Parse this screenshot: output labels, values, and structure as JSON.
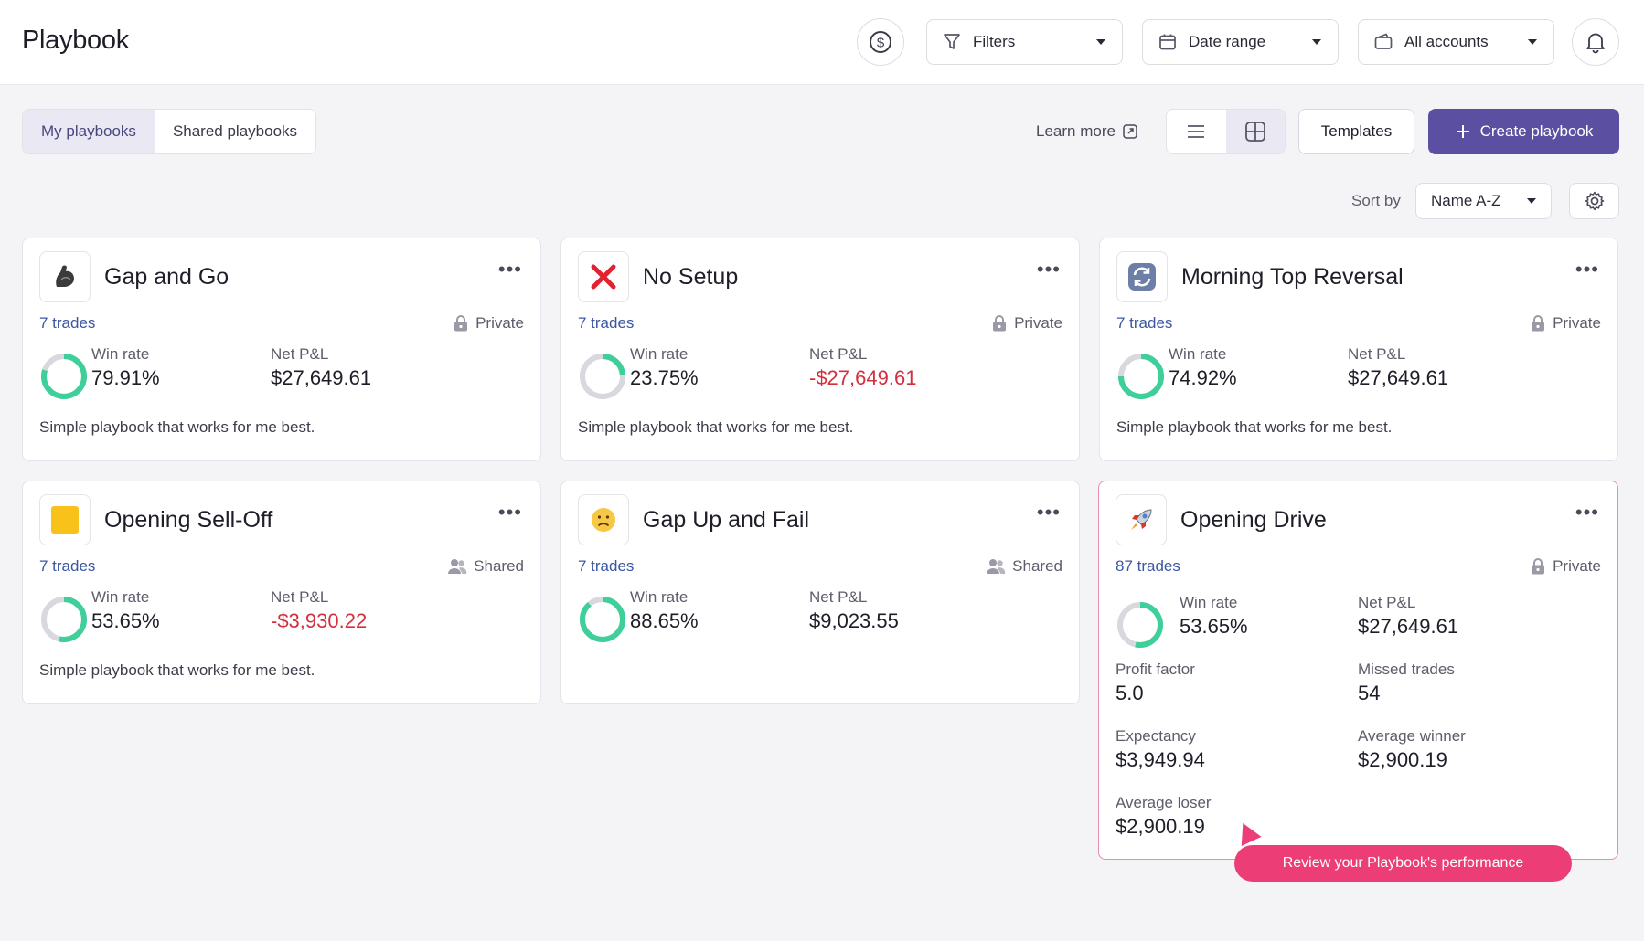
{
  "header": {
    "title": "Playbook",
    "filters_label": "Filters",
    "date_range_label": "Date range",
    "accounts_label": "All accounts"
  },
  "toolbar": {
    "tabs": [
      {
        "label": "My playbooks",
        "active": true
      },
      {
        "label": "Shared playbooks",
        "active": false
      }
    ],
    "learn_more": "Learn more",
    "templates_label": "Templates",
    "create_label": "Create playbook",
    "sort_by_label": "Sort by",
    "sort_value": "Name A-Z"
  },
  "colors": {
    "accent": "#5b4fa2",
    "ring_green": "#3ecf9a",
    "ring_track": "#d8d8de",
    "negative": "#d2303d",
    "tooltip": "#ec3d77"
  },
  "cards": [
    {
      "title": "Gap and Go",
      "icon": "flexed-biceps-icon",
      "trades": "7 trades",
      "privacy": "Private",
      "win_rate_label": "Win rate",
      "win_rate": "79.91%",
      "win_fraction": 0.7991,
      "pnl_label": "Net P&L",
      "pnl": "$27,649.61",
      "pnl_negative": false,
      "description": "Simple playbook that works for me best."
    },
    {
      "title": "No Setup",
      "icon": "red-x-icon",
      "trades": "7 trades",
      "privacy": "Private",
      "win_rate_label": "Win rate",
      "win_rate": "23.75%",
      "win_fraction": 0.2375,
      "pnl_label": "Net P&L",
      "pnl": "-$27,649.61",
      "pnl_negative": true,
      "description": "Simple playbook that works for me best."
    },
    {
      "title": "Morning Top Reversal",
      "icon": "reversal-arrows-icon",
      "trades": "7 trades",
      "privacy": "Private",
      "win_rate_label": "Win rate",
      "win_rate": "74.92%",
      "win_fraction": 0.7492,
      "pnl_label": "Net P&L",
      "pnl": "$27,649.61",
      "pnl_negative": false,
      "description": "Simple playbook that works for me best."
    },
    {
      "title": "Opening Sell-Off",
      "icon": "yellow-square-icon",
      "trades": "7 trades",
      "privacy": "Shared",
      "win_rate_label": "Win rate",
      "win_rate": "53.65%",
      "win_fraction": 0.5365,
      "pnl_label": "Net P&L",
      "pnl": "-$3,930.22",
      "pnl_negative": true,
      "description": "Simple playbook that works for me best."
    },
    {
      "title": "Gap Up and Fail",
      "icon": "frowning-face-icon",
      "trades": "7 trades",
      "privacy": "Shared",
      "win_rate_label": "Win rate",
      "win_rate": "88.65%",
      "win_fraction": 0.8865,
      "pnl_label": "Net P&L",
      "pnl": "$9,023.55",
      "pnl_negative": false,
      "description": ""
    },
    {
      "title": "Opening Drive",
      "icon": "rocket-icon",
      "trades": "87 trades",
      "privacy": "Private",
      "win_rate_label": "Win rate",
      "win_rate": "53.65%",
      "win_fraction": 0.5365,
      "pnl_label": "Net P&L",
      "pnl": "$27,649.61",
      "pnl_negative": false,
      "profit_factor_label": "Profit factor",
      "profit_factor": "5.0",
      "missed_trades_label": "Missed trades",
      "missed_trades": "54",
      "expectancy_label": "Expectancy",
      "expectancy": "$3,949.94",
      "avg_winner_label": "Average winner",
      "avg_winner": "$2,900.19",
      "avg_loser_label": "Average loser",
      "avg_loser": "$2,900.19"
    }
  ],
  "tooltip": {
    "text": "Review your Playbook's performance"
  }
}
